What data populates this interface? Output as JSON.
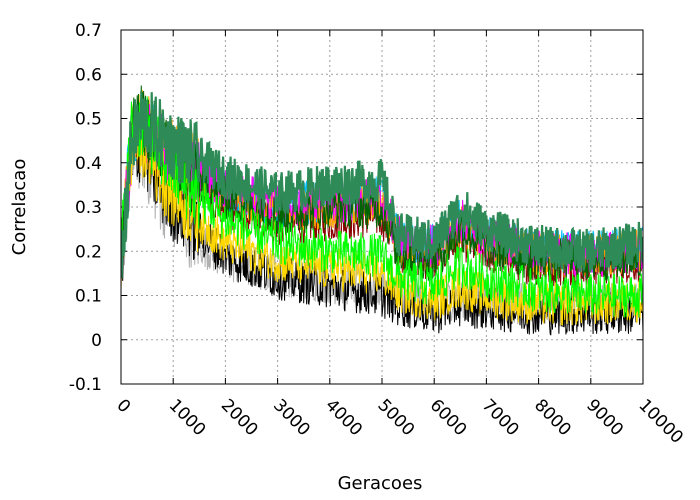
{
  "chart_data": {
    "type": "line",
    "title": "",
    "xlabel": "Geracoes",
    "ylabel": "Correlacao",
    "xlim": [
      0,
      10000
    ],
    "ylim": [
      -0.1,
      0.7
    ],
    "grid": true,
    "legend": "none",
    "x_ticks": [
      0,
      1000,
      2000,
      3000,
      4000,
      5000,
      6000,
      7000,
      8000,
      9000,
      10000
    ],
    "x_tick_labels": [
      "0",
      "1000",
      "2000",
      "3000",
      "4000",
      "5000",
      "6000",
      "7000",
      "8000",
      "9000",
      "10000"
    ],
    "y_ticks": [
      -0.1,
      0,
      0.1,
      0.2,
      0.3,
      0.4,
      0.5,
      0.6,
      0.7
    ],
    "y_tick_labels": [
      "-0.1",
      "0",
      "0.1",
      "0.2",
      "0.3",
      "0.4",
      "0.5",
      "0.6",
      "0.7"
    ],
    "series": [
      {
        "color": "#2e8b57",
        "x": [
          0,
          200,
          400,
          700,
          1000,
          1500,
          2000,
          3000,
          4000,
          5000,
          5300,
          6000,
          6500,
          7000,
          8000,
          9000,
          10000
        ],
        "values": [
          0.15,
          0.45,
          0.5,
          0.47,
          0.44,
          0.41,
          0.37,
          0.33,
          0.35,
          0.36,
          0.24,
          0.22,
          0.3,
          0.25,
          0.21,
          0.2,
          0.22
        ]
      },
      {
        "color": "#00ff00",
        "x": [
          0,
          200,
          400,
          700,
          1000,
          1500,
          2000,
          3000,
          4000,
          5000,
          5300,
          6000,
          6500,
          7000,
          8000,
          9000,
          10000
        ],
        "values": [
          0.2,
          0.47,
          0.49,
          0.43,
          0.38,
          0.32,
          0.27,
          0.22,
          0.2,
          0.19,
          0.14,
          0.12,
          0.17,
          0.14,
          0.11,
          0.1,
          0.1
        ]
      },
      {
        "color": "#006400",
        "x": [
          0,
          200,
          400,
          700,
          1000,
          1500,
          2000,
          3000,
          4000,
          5000,
          5300,
          6000,
          6500,
          7000,
          8000,
          9000,
          10000
        ],
        "values": [
          0.18,
          0.46,
          0.5,
          0.45,
          0.4,
          0.36,
          0.32,
          0.28,
          0.3,
          0.3,
          0.2,
          0.18,
          0.25,
          0.21,
          0.18,
          0.18,
          0.19
        ]
      },
      {
        "color": "#ffd700",
        "x": [
          0,
          200,
          400,
          700,
          1000,
          1500,
          2000,
          3000,
          4000,
          5000,
          5300,
          6000,
          6500,
          7000,
          8000,
          9000,
          10000
        ],
        "values": [
          0.2,
          0.42,
          0.45,
          0.38,
          0.33,
          0.27,
          0.22,
          0.18,
          0.16,
          0.15,
          0.11,
          0.09,
          0.12,
          0.1,
          0.08,
          0.08,
          0.09
        ]
      },
      {
        "color": "#ff00ff",
        "x": [
          0,
          200,
          400,
          700,
          1000,
          1500,
          2000,
          3000,
          4000,
          5000,
          5300,
          6000,
          6500,
          7000,
          8000,
          9000,
          10000
        ],
        "values": [
          0.18,
          0.44,
          0.48,
          0.44,
          0.41,
          0.38,
          0.34,
          0.3,
          0.31,
          0.32,
          0.23,
          0.21,
          0.27,
          0.23,
          0.2,
          0.19,
          0.2
        ]
      },
      {
        "color": "#000000",
        "x": [
          0,
          200,
          400,
          700,
          1000,
          1500,
          2000,
          3000,
          4000,
          5000,
          5300,
          6000,
          6500,
          7000,
          8000,
          9000,
          10000
        ],
        "values": [
          0.17,
          0.4,
          0.44,
          0.35,
          0.3,
          0.24,
          0.19,
          0.14,
          0.12,
          0.1,
          0.08,
          0.06,
          0.08,
          0.07,
          0.06,
          0.06,
          0.06
        ]
      },
      {
        "color": "#ffa500",
        "x": [
          0,
          200,
          400,
          700,
          1000,
          1500,
          2000,
          3000,
          4000,
          5000,
          5300,
          6000,
          6500,
          7000,
          8000,
          9000,
          10000
        ],
        "values": [
          0.19,
          0.45,
          0.49,
          0.45,
          0.42,
          0.38,
          0.33,
          0.29,
          0.3,
          0.31,
          0.22,
          0.2,
          0.26,
          0.22,
          0.19,
          0.19,
          0.2
        ]
      },
      {
        "color": "#00bfff",
        "x": [
          0,
          200,
          400,
          700,
          1000,
          1500,
          2000,
          3000,
          4000,
          5000,
          5300,
          6000,
          6500,
          7000,
          8000,
          9000,
          10000
        ],
        "values": [
          0.2,
          0.46,
          0.5,
          0.45,
          0.42,
          0.38,
          0.34,
          0.3,
          0.32,
          0.33,
          0.23,
          0.21,
          0.27,
          0.23,
          0.2,
          0.2,
          0.21
        ]
      },
      {
        "color": "#b0b0b0",
        "x": [
          0,
          200,
          400,
          700,
          1000,
          1500,
          2000,
          3000,
          4000,
          5000,
          5300,
          6000,
          6500,
          7000,
          8000,
          9000,
          10000
        ],
        "values": [
          0.16,
          0.4,
          0.42,
          0.33,
          0.28,
          0.22,
          0.18,
          0.15,
          0.13,
          0.12,
          0.1,
          0.08,
          0.1,
          0.09,
          0.08,
          0.08,
          0.08
        ]
      },
      {
        "color": "#8b0000",
        "x": [
          0,
          200,
          400,
          700,
          1000,
          1500,
          2000,
          3000,
          4000,
          5000,
          5300,
          6000,
          6500,
          7000,
          8000,
          9000,
          10000
        ],
        "values": [
          0.18,
          0.43,
          0.47,
          0.42,
          0.38,
          0.34,
          0.3,
          0.26,
          0.27,
          0.28,
          0.2,
          0.18,
          0.23,
          0.2,
          0.17,
          0.17,
          0.18
        ]
      }
    ]
  }
}
